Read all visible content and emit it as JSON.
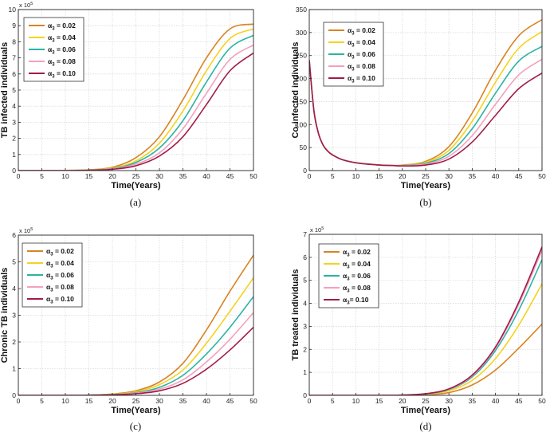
{
  "colors": {
    "0.02": "#d98324",
    "0.04": "#f5d21e",
    "0.06": "#2bb3a4",
    "0.08": "#f4a0bd",
    "0.10": "#a01c48"
  },
  "chart_data": [
    {
      "id": "a",
      "type": "line",
      "caption": "(a)",
      "xlabel": "Time(Years)",
      "ylabel": "TB infected individuals",
      "multiplier": "x 10",
      "multiplier_exp": "5",
      "xlim": [
        0,
        50
      ],
      "ylim": [
        0,
        10
      ],
      "xticks": [
        0,
        5,
        10,
        15,
        20,
        25,
        30,
        35,
        40,
        45,
        50
      ],
      "yticks": [
        0,
        1,
        2,
        3,
        4,
        5,
        6,
        7,
        8,
        9,
        10
      ],
      "legend": [
        "α3 = 0.02",
        "α3 = 0.04",
        "α3 = 0.06",
        "α3 = 0.08",
        "α3 = 0.10"
      ],
      "x": [
        0,
        5,
        10,
        15,
        20,
        25,
        30,
        35,
        40,
        45,
        50
      ],
      "series": [
        {
          "name": "α3 = 0.02",
          "color_key": "0.02",
          "values": [
            0,
            0,
            0.01,
            0.05,
            0.2,
            0.8,
            2.1,
            4.4,
            7.0,
            8.8,
            9.1
          ]
        },
        {
          "name": "α3 = 0.04",
          "color_key": "0.04",
          "values": [
            0,
            0,
            0.01,
            0.04,
            0.16,
            0.6,
            1.7,
            3.7,
            6.2,
            8.2,
            8.8
          ]
        },
        {
          "name": "α3 = 0.06",
          "color_key": "0.06",
          "values": [
            0,
            0,
            0.01,
            0.03,
            0.13,
            0.5,
            1.4,
            3.1,
            5.5,
            7.6,
            8.4
          ]
        },
        {
          "name": "α3 = 0.08",
          "color_key": "0.08",
          "values": [
            0,
            0,
            0.01,
            0.02,
            0.1,
            0.4,
            1.1,
            2.6,
            4.8,
            6.9,
            7.8
          ]
        },
        {
          "name": "α3 = 0.10",
          "color_key": "0.10",
          "values": [
            0,
            0,
            0,
            0.02,
            0.08,
            0.3,
            0.9,
            2.1,
            4.1,
            6.2,
            7.3
          ]
        }
      ]
    },
    {
      "id": "b",
      "type": "line",
      "caption": "(b)",
      "xlabel": "Time(Years)",
      "ylabel": "Co-infected individuals",
      "multiplier": "",
      "multiplier_exp": "",
      "xlim": [
        0,
        50
      ],
      "ylim": [
        0,
        350
      ],
      "xticks": [
        0,
        5,
        10,
        15,
        20,
        25,
        30,
        35,
        40,
        45,
        50
      ],
      "yticks": [
        0,
        50,
        100,
        150,
        200,
        250,
        300,
        350
      ],
      "legend": [
        "α3 = 0.02",
        "α3 = 0.04",
        "α3 = 0.06",
        "α3 = 0.08",
        "α3 = 0.10"
      ],
      "x": [
        0,
        1,
        2,
        3,
        4,
        5,
        7,
        10,
        15,
        18,
        20,
        25,
        30,
        35,
        40,
        45,
        50
      ],
      "series": [
        {
          "name": "α3 = 0.02",
          "color_key": "0.02",
          "values": [
            240,
            130,
            80,
            55,
            42,
            34,
            24,
            17,
            12,
            11,
            12,
            20,
            52,
            125,
            218,
            293,
            328
          ]
        },
        {
          "name": "α3 = 0.04",
          "color_key": "0.04",
          "values": [
            240,
            130,
            80,
            55,
            42,
            34,
            24,
            17,
            12,
            11,
            11.5,
            18,
            44,
            107,
            192,
            266,
            302
          ]
        },
        {
          "name": "α3 = 0.06",
          "color_key": "0.06",
          "values": [
            240,
            130,
            80,
            55,
            42,
            34,
            24,
            17,
            12,
            11,
            11,
            16,
            37,
            91,
            168,
            238,
            270
          ]
        },
        {
          "name": "α3 = 0.08",
          "color_key": "0.08",
          "values": [
            240,
            130,
            80,
            55,
            42,
            34,
            24,
            17,
            12,
            11,
            10.5,
            14,
            31,
            76,
            144,
            208,
            242
          ]
        },
        {
          "name": "α3 = 0.10",
          "color_key": "0.10",
          "values": [
            240,
            130,
            80,
            55,
            42,
            34,
            24,
            17,
            12,
            11,
            10,
            12,
            25,
            62,
            120,
            178,
            212
          ]
        }
      ]
    },
    {
      "id": "c",
      "type": "line",
      "caption": "(c)",
      "xlabel": "Time(Years)",
      "ylabel": "Chronic TB individuals",
      "multiplier": "x 10",
      "multiplier_exp": "5",
      "xlim": [
        0,
        50
      ],
      "ylim": [
        0,
        6
      ],
      "xticks": [
        0,
        5,
        10,
        15,
        20,
        25,
        30,
        35,
        40,
        45,
        50
      ],
      "yticks": [
        0,
        1,
        2,
        3,
        4,
        5,
        6
      ],
      "legend": [
        "α3 = 0.02",
        "α3 = 0.04",
        "α3 = 0.06",
        "α3 = 0.08",
        "α3 = 0.10"
      ],
      "x": [
        0,
        5,
        10,
        15,
        20,
        25,
        30,
        35,
        40,
        45,
        50
      ],
      "series": [
        {
          "name": "α3 = 0.02",
          "color_key": "0.02",
          "values": [
            0,
            0,
            0,
            0.01,
            0.05,
            0.17,
            0.5,
            1.2,
            2.45,
            3.9,
            5.25
          ]
        },
        {
          "name": "α3 = 0.04",
          "color_key": "0.04",
          "values": [
            0,
            0,
            0,
            0.01,
            0.04,
            0.13,
            0.4,
            0.95,
            1.95,
            3.15,
            4.4
          ]
        },
        {
          "name": "α3 = 0.06",
          "color_key": "0.06",
          "values": [
            0,
            0,
            0,
            0.01,
            0.03,
            0.1,
            0.3,
            0.75,
            1.55,
            2.55,
            3.7
          ]
        },
        {
          "name": "α3 = 0.08",
          "color_key": "0.08",
          "values": [
            0,
            0,
            0,
            0,
            0.02,
            0.08,
            0.23,
            0.58,
            1.25,
            2.1,
            3.1
          ]
        },
        {
          "name": "α3 = 0.10",
          "color_key": "0.10",
          "values": [
            0,
            0,
            0,
            0,
            0.02,
            0.06,
            0.17,
            0.45,
            0.98,
            1.7,
            2.55
          ]
        }
      ]
    },
    {
      "id": "d",
      "type": "line",
      "caption": "(d)",
      "xlabel": "Time(Years)",
      "ylabel": "TB treated individuals",
      "multiplier": "x 10",
      "multiplier_exp": "5",
      "xlim": [
        0,
        50
      ],
      "ylim": [
        0,
        7
      ],
      "xticks": [
        0,
        5,
        10,
        15,
        20,
        25,
        30,
        35,
        40,
        45,
        50
      ],
      "yticks": [
        0,
        1,
        2,
        3,
        4,
        5,
        6,
        7
      ],
      "legend": [
        "α3 = 0.02",
        "α3 = 0.04",
        "α3 = 0.06",
        "α3 = 0.08",
        "α3= 0.10"
      ],
      "x": [
        0,
        5,
        10,
        15,
        20,
        25,
        30,
        35,
        40,
        45,
        50
      ],
      "series": [
        {
          "name": "α3 = 0.02",
          "color_key": "0.02",
          "values": [
            0,
            0,
            0,
            0,
            0.01,
            0.03,
            0.12,
            0.45,
            1.1,
            2.05,
            3.1
          ]
        },
        {
          "name": "α3 = 0.04",
          "color_key": "0.04",
          "values": [
            0,
            0,
            0,
            0,
            0.01,
            0.05,
            0.2,
            0.65,
            1.6,
            3.05,
            4.85
          ]
        },
        {
          "name": "α3 = 0.06",
          "color_key": "0.06",
          "values": [
            0,
            0,
            0,
            0,
            0.01,
            0.06,
            0.25,
            0.8,
            1.95,
            3.7,
            5.9
          ]
        },
        {
          "name": "α3 = 0.08",
          "color_key": "0.08",
          "values": [
            0,
            0,
            0,
            0,
            0.01,
            0.07,
            0.27,
            0.85,
            2.05,
            3.95,
            6.3
          ]
        },
        {
          "name": "α3 = 0.10",
          "color_key": "0.10",
          "values": [
            0,
            0,
            0,
            0,
            0.01,
            0.07,
            0.28,
            0.88,
            2.1,
            4.05,
            6.45
          ]
        }
      ]
    }
  ]
}
